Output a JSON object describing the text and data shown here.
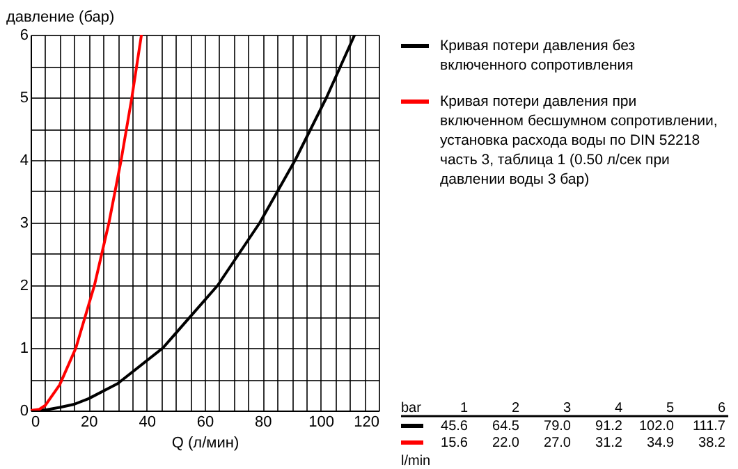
{
  "chart_data": {
    "type": "line",
    "xlabel": "Q (л/мин)",
    "ylabel": "давление (бар)",
    "series": [
      {
        "name": "Кривая потери давления без включенного сопротивления",
        "color": "#000000",
        "x": [
          0,
          5,
          10,
          15,
          20,
          30,
          45.6,
          64.5,
          79.0,
          91.2,
          102.0,
          111.7
        ],
        "values": [
          0,
          0.01,
          0.05,
          0.1,
          0.19,
          0.43,
          1,
          2,
          3,
          4,
          5,
          6
        ]
      },
      {
        "name": "Кривая потери давления при включенном бесшумном сопротивлении, установка расхода воды по DIN 52218 часть 3, таблица 1 (0.50 л/сек при давлении воды 3 бар)",
        "color": "#ff0000",
        "x": [
          0,
          3,
          5,
          10,
          15.6,
          22.0,
          27.0,
          31.2,
          34.9,
          38.2
        ],
        "values": [
          0,
          0.02,
          0.08,
          0.41,
          1,
          2,
          3,
          4,
          5,
          6
        ]
      }
    ],
    "xlim": [
      0,
      120
    ],
    "xticks": [
      0,
      {
        "value": 5,
        "label": null
      },
      {
        "value": 10,
        "label": null
      },
      {
        "value": 15,
        "label": null
      },
      20,
      {
        "value": 25,
        "label": null
      },
      {
        "value": 30,
        "label": null
      },
      {
        "value": 35,
        "label": null
      },
      40,
      {
        "value": 45,
        "label": null
      },
      {
        "value": 50,
        "label": null
      },
      {
        "value": 55,
        "label": null
      },
      60,
      {
        "value": 65,
        "label": null
      },
      {
        "value": 70,
        "label": null
      },
      {
        "value": 75,
        "label": null
      },
      80,
      {
        "value": 85,
        "label": null
      },
      {
        "value": 90,
        "label": null
      },
      {
        "value": 95,
        "label": null
      },
      100,
      {
        "value": 105,
        "label": null
      },
      {
        "value": 110,
        "label": null
      },
      {
        "value": 115,
        "label": null
      },
      120
    ],
    "ylim": [
      0,
      6
    ],
    "yticks": [
      0,
      {
        "value": 0.5,
        "label": null
      },
      1,
      {
        "value": 1.5,
        "label": null
      },
      2,
      {
        "value": 2.5,
        "label": null
      },
      3,
      {
        "value": 3.5,
        "label": null
      },
      4,
      {
        "value": 4.5,
        "label": null
      },
      5,
      {
        "value": 5.5,
        "label": null
      },
      6
    ],
    "grid": true,
    "legend": "right",
    "marker": "none",
    "line_style": "solid",
    "annotations": [
      "bar",
      "1",
      "2",
      "3",
      "4",
      "5",
      "6",
      "45.6",
      "64.5",
      "79.0",
      "91.2",
      "102.0",
      "111.7",
      "15.6",
      "22.0",
      "27.0",
      "31.2",
      "34.9",
      "38.2",
      "l/min"
    ]
  }
}
